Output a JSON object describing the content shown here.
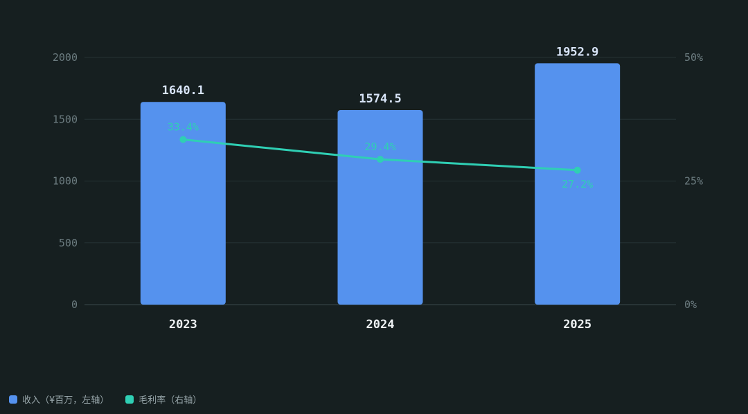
{
  "colors": {
    "background": "#161f20",
    "bar": "#5592ee",
    "line": "#2fcfb4",
    "grid": "#263335",
    "axis": "#3a494c"
  },
  "legend": {
    "revenue_label": "收入（¥百万，左轴）",
    "margin_label": "毛利率（右轴）"
  },
  "chart_data": {
    "type": "bar",
    "categories": [
      "2023",
      "2024",
      "2025"
    ],
    "series": [
      {
        "name": "收入（¥百万，左轴）",
        "type": "bar",
        "axis": "left",
        "values": [
          1640.1,
          1574.5,
          1952.9
        ],
        "value_labels": [
          "1640.1",
          "1574.5",
          "1952.9"
        ]
      },
      {
        "name": "毛利率（右轴）",
        "type": "line",
        "axis": "right",
        "values": [
          33.4,
          29.4,
          27.2
        ],
        "value_labels": [
          "33.4%",
          "29.4%",
          "27.2%"
        ]
      }
    ],
    "y_left": {
      "range": [
        0,
        2000
      ],
      "ticks": [
        0,
        500,
        1000,
        1500,
        2000
      ],
      "tick_labels": [
        "0",
        "500",
        "1000",
        "1500",
        "2000"
      ]
    },
    "y_right": {
      "range": [
        0,
        50
      ],
      "ticks": [
        0,
        25,
        50
      ],
      "tick_labels": [
        "0%",
        "25%",
        "50%"
      ]
    },
    "grid": true,
    "legend_position": "bottom-left"
  }
}
